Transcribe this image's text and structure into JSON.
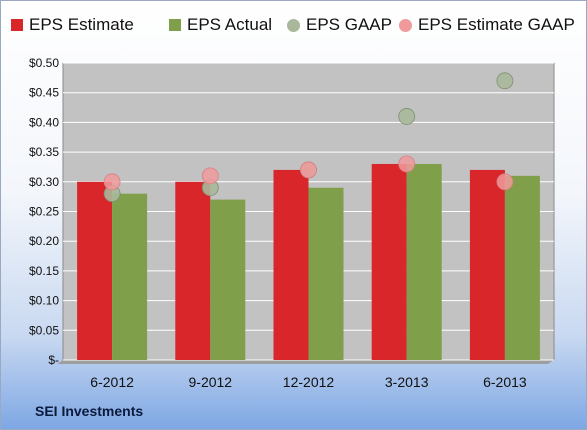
{
  "chart_data": {
    "type": "bar",
    "categories": [
      "6-2012",
      "9-2012",
      "12-2012",
      "3-2013",
      "6-2013"
    ],
    "series": [
      {
        "name": "EPS Estimate",
        "kind": "bar",
        "color": "#d9262b",
        "values": [
          0.3,
          0.3,
          0.32,
          0.33,
          0.32
        ]
      },
      {
        "name": "EPS Actual",
        "kind": "bar",
        "color": "#7f9f4a",
        "values": [
          0.28,
          0.27,
          0.29,
          0.33,
          0.31
        ]
      },
      {
        "name": "EPS GAAP",
        "kind": "scatter",
        "color": "#a9b89a",
        "values": [
          0.28,
          0.29,
          0.32,
          0.41,
          0.47
        ]
      },
      {
        "name": "EPS Estimate GAAP",
        "kind": "scatter",
        "color": "#f09a9c",
        "values": [
          0.3,
          0.31,
          0.32,
          0.33,
          0.3
        ]
      }
    ],
    "yticks": [
      "$-",
      "$0.05",
      "$0.10",
      "$0.15",
      "$0.20",
      "$0.25",
      "$0.30",
      "$0.35",
      "$0.40",
      "$0.45",
      "$0.50"
    ],
    "ylim": [
      0,
      0.5
    ],
    "grid": true,
    "legend_position": "top",
    "plot_background": "#c2c2c2"
  },
  "company": "SEI Investments"
}
